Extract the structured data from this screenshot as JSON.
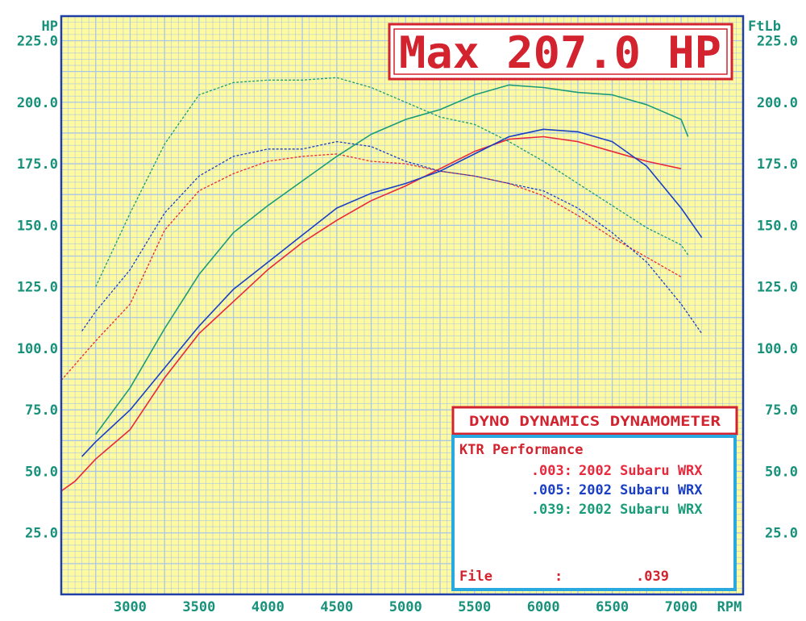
{
  "chart_data": {
    "type": "line",
    "title": "Max 207.0 HP",
    "left_axis_label": "HP",
    "right_axis_label": "FtLb",
    "x_unit_label": "RPM",
    "xlim": [
      2500,
      7450
    ],
    "ylim": [
      0,
      235
    ],
    "x_ticks": [
      "3000",
      "3500",
      "4000",
      "4500",
      "5000",
      "5500",
      "6000",
      "6500",
      "7000"
    ],
    "y_ticks": [
      "25.0",
      "50.0",
      "75.0",
      "100.0",
      "125.0",
      "150.0",
      "175.0",
      "200.0",
      "225.0"
    ],
    "grid": true,
    "series": [
      {
        "id": ".003",
        "color": "#e8283c",
        "kind": "power",
        "x": [
          2500,
          2600,
          2750,
          3000,
          3250,
          3500,
          3750,
          4000,
          4250,
          4500,
          4750,
          5000,
          5250,
          5500,
          5750,
          6000,
          6250,
          6500,
          6750,
          7000
        ],
        "values": [
          42,
          46,
          55,
          67,
          88,
          106,
          119,
          132,
          143,
          152,
          160,
          166,
          173,
          180,
          185,
          186,
          184,
          180,
          176,
          173
        ]
      },
      {
        "id": ".003",
        "color": "#e8283c",
        "kind": "torque",
        "x": [
          2500,
          2750,
          3000,
          3250,
          3500,
          3750,
          4000,
          4250,
          4500,
          4750,
          5000,
          5250,
          5500,
          5750,
          6000,
          6250,
          6500,
          6750,
          7000
        ],
        "values": [
          87,
          103,
          118,
          148,
          164,
          171,
          176,
          178,
          179,
          176,
          175,
          172,
          170,
          167,
          162,
          154,
          145,
          137,
          129
        ]
      },
      {
        "id": ".005",
        "color": "#1a3fc4",
        "kind": "power",
        "x": [
          2650,
          2750,
          3000,
          3250,
          3500,
          3750,
          4000,
          4250,
          4500,
          4750,
          5000,
          5250,
          5500,
          5750,
          6000,
          6250,
          6500,
          6750,
          7000,
          7150
        ],
        "values": [
          56,
          62,
          75,
          92,
          109,
          124,
          135,
          146,
          157,
          163,
          167,
          172,
          179,
          186,
          189,
          188,
          184,
          174,
          157,
          145
        ]
      },
      {
        "id": ".005",
        "color": "#1a3fc4",
        "kind": "torque",
        "x": [
          2650,
          2750,
          3000,
          3250,
          3500,
          3750,
          4000,
          4250,
          4500,
          4750,
          5000,
          5250,
          5500,
          5750,
          6000,
          6250,
          6500,
          6750,
          7000,
          7150
        ],
        "values": [
          107,
          115,
          132,
          155,
          170,
          178,
          181,
          181,
          184,
          182,
          176,
          172,
          170,
          167,
          164,
          157,
          147,
          135,
          118,
          106
        ]
      },
      {
        "id": ".039",
        "color": "#1a9c78",
        "kind": "power",
        "x": [
          2750,
          3000,
          3250,
          3500,
          3750,
          4000,
          4250,
          4500,
          4750,
          5000,
          5250,
          5500,
          5750,
          6000,
          6250,
          6500,
          6750,
          7000,
          7050
        ],
        "values": [
          65,
          84,
          108,
          130,
          147,
          158,
          168,
          178,
          187,
          193,
          197,
          203,
          207,
          206,
          204,
          203,
          199,
          193,
          186
        ]
      },
      {
        "id": ".039",
        "color": "#1a9c78",
        "kind": "torque",
        "x": [
          2750,
          3000,
          3250,
          3500,
          3750,
          4000,
          4250,
          4500,
          4750,
          5000,
          5250,
          5500,
          5750,
          6000,
          6250,
          6500,
          6750,
          7000,
          7050
        ],
        "values": [
          125,
          155,
          183,
          203,
          208,
          209,
          209,
          210,
          206,
          200,
          194,
          191,
          184,
          176,
          167,
          158,
          149,
          142,
          138
        ]
      }
    ]
  },
  "legend": {
    "header": "DYNO DYNAMICS DYNAMOMETER",
    "company": "KTR Performance",
    "entries": [
      {
        "code": ".003:",
        "text": "2002 Subaru WRX",
        "color": "#e8283c"
      },
      {
        "code": ".005:",
        "text": "2002 Subaru WRX",
        "color": "#1a3fc4"
      },
      {
        "code": ".039:",
        "text": "2002 Subaru WRX",
        "color": "#1a9c78"
      }
    ],
    "file_label": "File",
    "file_sep": ":",
    "file_value": ".039"
  },
  "colors": {
    "background": "#fffaa0",
    "grid": "#a8c6e8",
    "frame": "#1e3fa8",
    "axis_text": "#17917a",
    "title_red": "#d2232e",
    "legend_border": "#2aa8e0"
  }
}
